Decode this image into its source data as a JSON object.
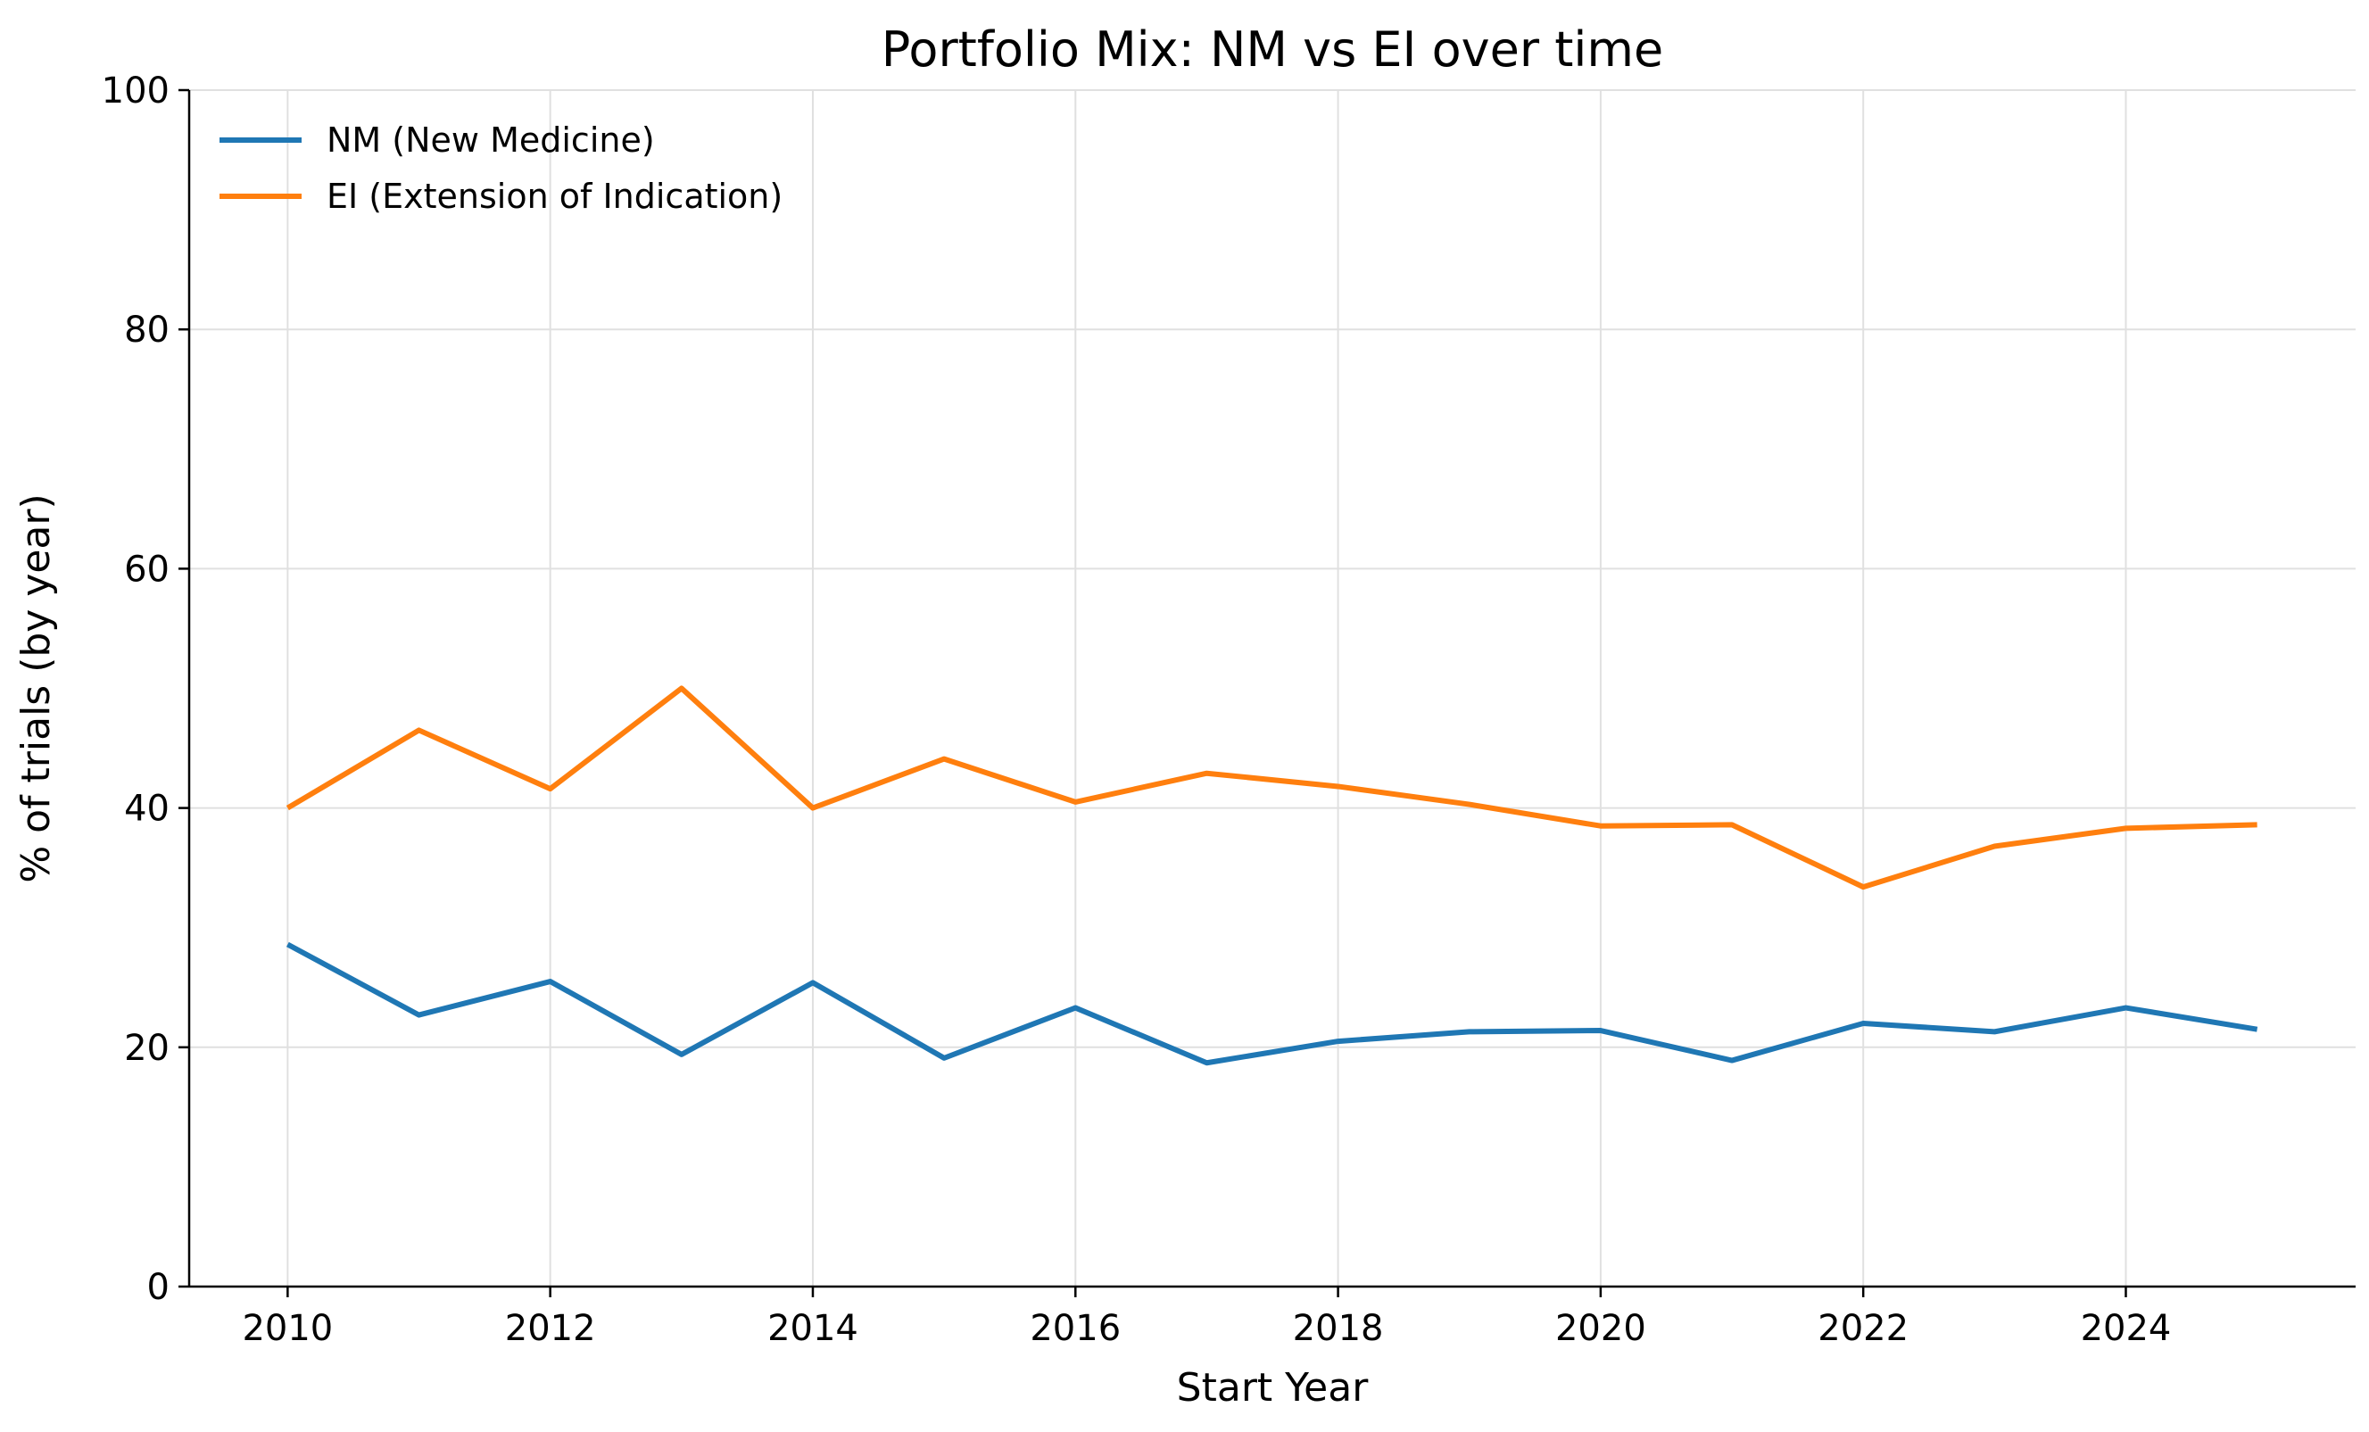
{
  "chart_data": {
    "type": "line",
    "title": "Portfolio Mix: NM vs EI over time",
    "xlabel": "Start Year",
    "ylabel": "% of trials (by year)",
    "x": [
      2010,
      2011,
      2012,
      2013,
      2014,
      2015,
      2016,
      2017,
      2018,
      2019,
      2020,
      2021,
      2022,
      2023,
      2024,
      2025
    ],
    "xlim": [
      2009.25,
      2025.75
    ],
    "ylim": [
      0,
      100
    ],
    "xticks": [
      2010,
      2012,
      2014,
      2016,
      2018,
      2020,
      2022,
      2024
    ],
    "yticks": [
      0,
      20,
      40,
      60,
      80,
      100
    ],
    "grid": true,
    "legend_position": "top-left",
    "series": [
      {
        "name": "NM (New Medicine)",
        "color": "#1f77b4",
        "values": [
          28.6,
          22.7,
          25.5,
          19.4,
          25.4,
          19.1,
          23.3,
          18.7,
          20.5,
          21.3,
          21.4,
          18.9,
          22.0,
          21.3,
          23.3,
          21.5
        ]
      },
      {
        "name": "EI (Extension of Indication)",
        "color": "#ff7f0e",
        "values": [
          40.0,
          46.5,
          41.6,
          50.0,
          40.0,
          44.1,
          40.5,
          42.9,
          41.8,
          40.3,
          38.5,
          38.6,
          33.4,
          36.8,
          38.3,
          38.6
        ]
      }
    ]
  }
}
